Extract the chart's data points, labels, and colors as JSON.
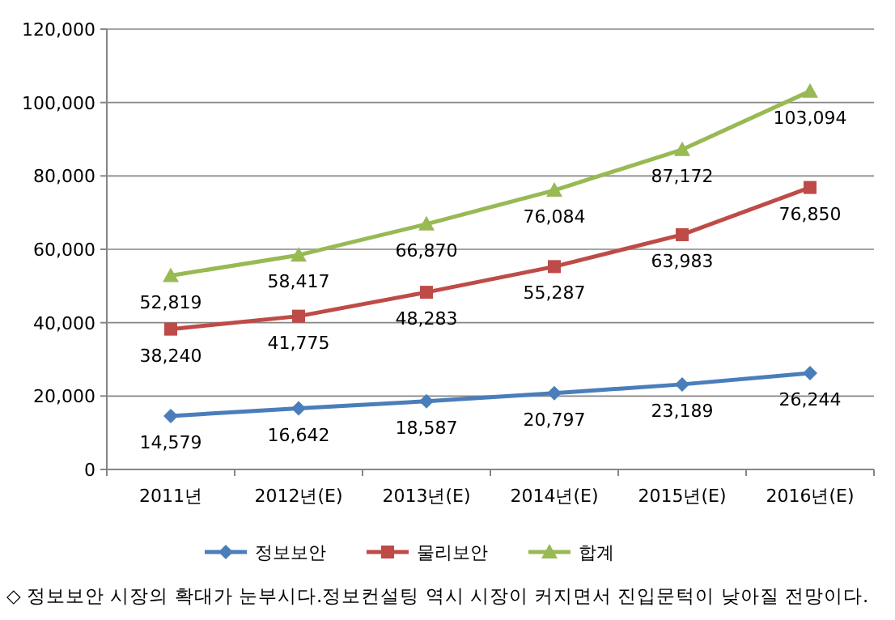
{
  "chart_data": {
    "type": "line",
    "categories": [
      "2011년",
      "2012년(E)",
      "2013년(E)",
      "2014년(E)",
      "2015년(E)",
      "2016년(E)"
    ],
    "series": [
      {
        "name": "정보보안",
        "color": "#4a7ebb",
        "marker": "diamond",
        "values": [
          14579,
          16642,
          18587,
          20797,
          23189,
          26244
        ],
        "value_labels": [
          "14,579",
          "16,642",
          "18,587",
          "20,797",
          "23,189",
          "26,244"
        ]
      },
      {
        "name": "물리보안",
        "color": "#be4b48",
        "marker": "square",
        "values": [
          38240,
          41775,
          48283,
          55287,
          63983,
          76850
        ],
        "value_labels": [
          "38,240",
          "41,775",
          "48,283",
          "55,287",
          "63,983",
          "76,850"
        ]
      },
      {
        "name": "합계",
        "color": "#98b954",
        "marker": "triangle",
        "values": [
          52819,
          58417,
          66870,
          76084,
          87172,
          103094
        ],
        "value_labels": [
          "52,819",
          "58,417",
          "66,870",
          "76,084",
          "87,172",
          "103,094"
        ]
      }
    ],
    "ylim": [
      0,
      120000
    ],
    "yticks": [
      {
        "value": 0,
        "label": "0"
      },
      {
        "value": 20000,
        "label": "20,000"
      },
      {
        "value": 40000,
        "label": "40,000"
      },
      {
        "value": 60000,
        "label": "60,000"
      },
      {
        "value": 80000,
        "label": "80,000"
      },
      {
        "value": 100000,
        "label": "100,000"
      },
      {
        "value": 120000,
        "label": "120,000"
      }
    ],
    "grid": "y",
    "legend": "bottom",
    "annotations": [
      "◇ 정보보안 시장의 확대가 눈부시다.정보컨설팅 역시 시장이 커지면서 진입문턱이 낮아질 전망이다."
    ]
  }
}
